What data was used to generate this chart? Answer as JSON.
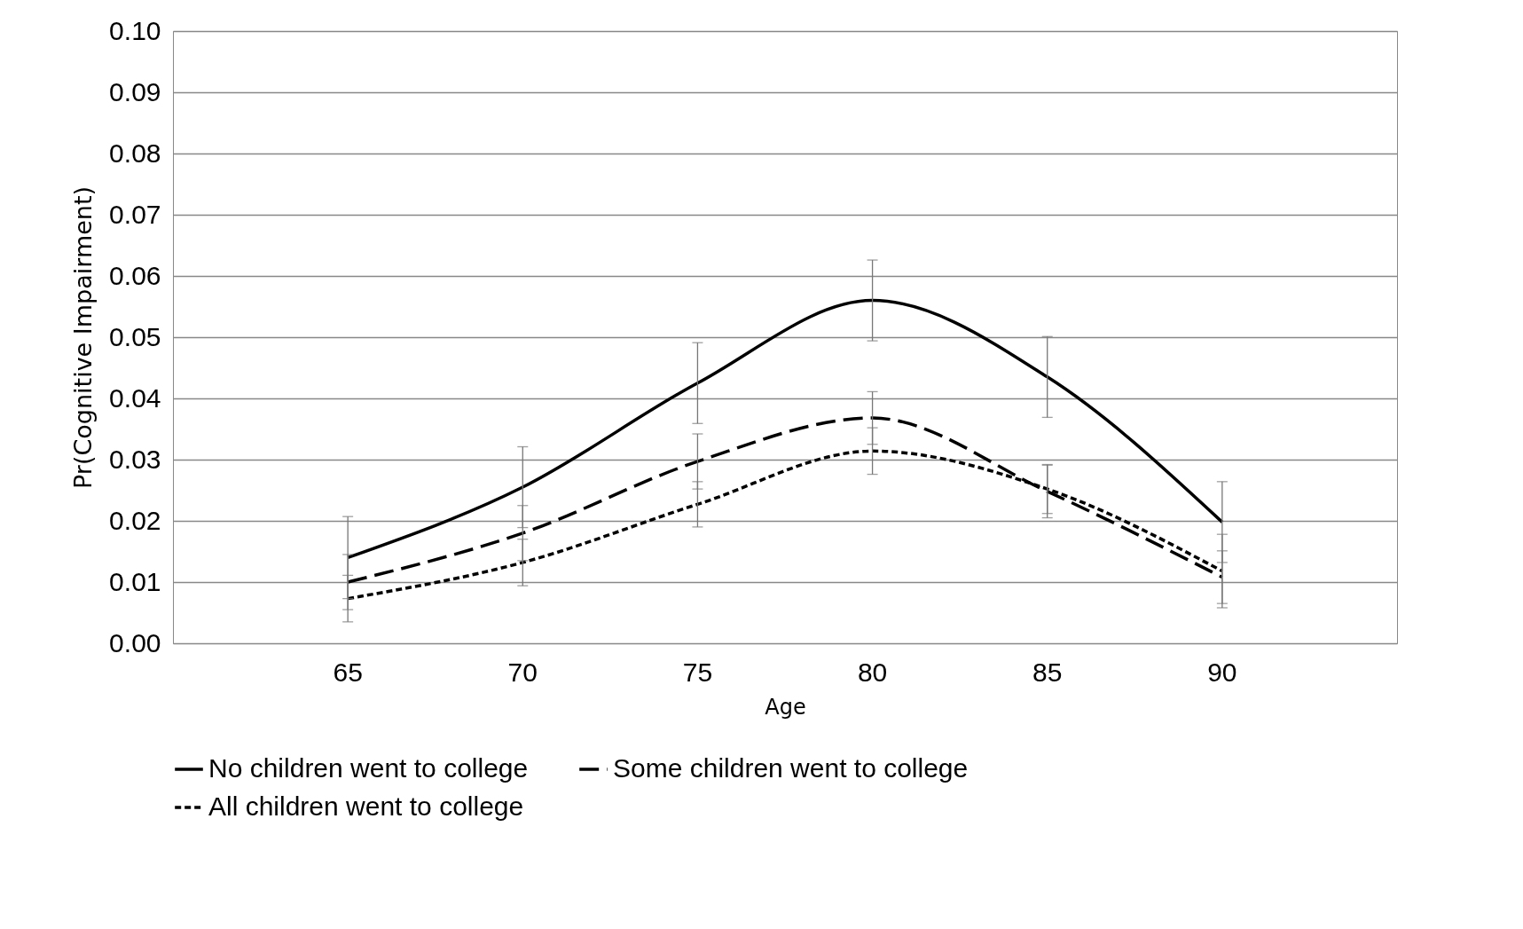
{
  "chart_data": {
    "type": "line",
    "xlabel": "Age",
    "ylabel": "Pr(Cognitive Impairment)",
    "categories": [
      "65",
      "70",
      "75",
      "80",
      "85",
      "90"
    ],
    "series": [
      {
        "name": "No children went to college",
        "color": "#000000",
        "line_style": "solid",
        "values": [
          0.014,
          0.0255,
          0.0425,
          0.056,
          0.0435,
          0.0198
        ],
        "errors": [
          0.0067,
          0.0066,
          0.0066,
          0.0066,
          0.0066,
          0.0066
        ]
      },
      {
        "name": "Some children went to college",
        "color": "#000000",
        "line_style": "dashed",
        "values": [
          0.01,
          0.018,
          0.0297,
          0.0368,
          0.0248,
          0.0108
        ],
        "errors": [
          0.0045,
          0.0045,
          0.0045,
          0.0043,
          0.0043,
          0.0043
        ]
      },
      {
        "name": "All children went to college",
        "color": "#000000",
        "line_style": "dotted",
        "values": [
          0.0073,
          0.0132,
          0.0227,
          0.0314,
          0.0252,
          0.0118
        ],
        "errors": [
          0.0038,
          0.0038,
          0.0037,
          0.0038,
          0.004,
          0.006
        ]
      }
    ],
    "ylim": [
      0,
      0.1
    ],
    "yticks": [
      {
        "value": 0,
        "label": "0.00"
      },
      {
        "value": 0.01,
        "label": "0.01"
      },
      {
        "value": 0.02,
        "label": "0.02"
      },
      {
        "value": 0.03,
        "label": "0.03"
      },
      {
        "value": 0.04,
        "label": "0.04"
      },
      {
        "value": 0.05,
        "label": "0.05"
      },
      {
        "value": 0.06,
        "label": "0.06"
      },
      {
        "value": 0.07,
        "label": "0.07"
      },
      {
        "value": 0.08,
        "label": "0.08"
      },
      {
        "value": 0.09,
        "label": "0.09"
      },
      {
        "value": 0.1,
        "label": "0.10"
      }
    ],
    "grid": "y",
    "legend": "bottom",
    "marker": "none"
  }
}
